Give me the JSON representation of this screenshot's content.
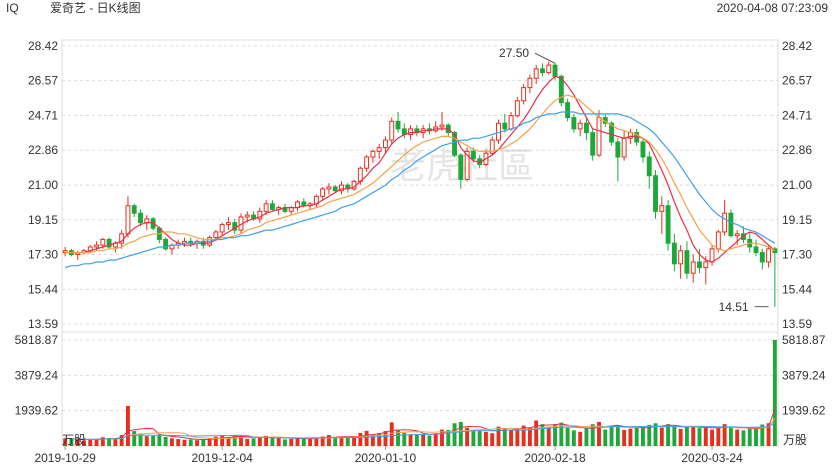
{
  "header": {
    "ticker": "IQ",
    "name": "爱奇艺 - 日K线图",
    "datetime": "2020-04-08 07:23:09"
  },
  "watermark": "老虎社區",
  "colors": {
    "up": "#e5301e",
    "down": "#1fa83a",
    "ma_short": "#e5304a",
    "ma_mid": "#f5a24a",
    "ma_long": "#3fa0e8",
    "grid": "#dcdcdc"
  },
  "chart_data": {
    "type": "candlestick",
    "price_axis": {
      "ticks": [
        28.42,
        26.57,
        24.71,
        22.86,
        21.0,
        19.15,
        17.3,
        15.44,
        13.59
      ],
      "tick_labels": [
        "28.42",
        "26.57",
        "24.71",
        "22.86",
        "21.00",
        "19.15",
        "17.30",
        "15.44",
        "13.59"
      ],
      "range": [
        13.59,
        28.42
      ]
    },
    "volume_axis": {
      "ticks": [
        5818.87,
        3879.24,
        1939.62
      ],
      "tick_labels": [
        "5818.87",
        "3879.24",
        "1939.62"
      ],
      "unit": "万股",
      "max": 5818.87
    },
    "x_labels": [
      "2019-10-29",
      "2019-12-04",
      "2020-01-10",
      "2020-02-18",
      "2020-03-24"
    ],
    "x_label_index": [
      0,
      25,
      51,
      78,
      103
    ],
    "annotations": [
      {
        "text": "27.50",
        "index": 78,
        "value": 27.5
      },
      {
        "text": "14.51",
        "index": 112,
        "value": 14.51
      }
    ],
    "candles": [
      [
        17.4,
        17.7,
        17.2,
        17.5
      ],
      [
        17.5,
        17.6,
        17.2,
        17.3
      ],
      [
        17.3,
        17.5,
        17.0,
        17.4
      ],
      [
        17.4,
        17.6,
        17.3,
        17.5
      ],
      [
        17.5,
        17.8,
        17.4,
        17.7
      ],
      [
        17.7,
        18.0,
        17.5,
        17.8
      ],
      [
        17.8,
        18.2,
        17.6,
        18.1
      ],
      [
        18.1,
        18.2,
        17.6,
        17.7
      ],
      [
        17.7,
        18.0,
        17.4,
        17.9
      ],
      [
        17.9,
        18.6,
        17.6,
        18.4
      ],
      [
        18.4,
        20.4,
        18.2,
        19.9
      ],
      [
        19.9,
        20.0,
        19.3,
        19.5
      ],
      [
        19.5,
        19.7,
        18.8,
        19.0
      ],
      [
        19.0,
        19.4,
        18.6,
        19.2
      ],
      [
        19.2,
        19.3,
        18.6,
        18.7
      ],
      [
        18.7,
        18.8,
        17.9,
        18.1
      ],
      [
        18.1,
        18.2,
        17.5,
        17.6
      ],
      [
        17.6,
        17.9,
        17.3,
        17.8
      ],
      [
        17.8,
        18.1,
        17.6,
        17.9
      ],
      [
        17.9,
        18.2,
        17.7,
        18.0
      ],
      [
        18.0,
        18.2,
        17.7,
        17.9
      ],
      [
        17.9,
        18.1,
        17.6,
        18.0
      ],
      [
        18.0,
        18.2,
        17.6,
        17.8
      ],
      [
        17.8,
        18.3,
        17.7,
        18.2
      ],
      [
        18.2,
        18.6,
        18.0,
        18.5
      ],
      [
        18.5,
        19.0,
        18.3,
        18.9
      ],
      [
        18.9,
        19.3,
        18.6,
        19.0
      ],
      [
        19.0,
        19.2,
        18.4,
        18.6
      ],
      [
        18.6,
        19.5,
        18.4,
        19.3
      ],
      [
        19.3,
        19.6,
        19.0,
        19.4
      ],
      [
        19.4,
        19.6,
        19.1,
        19.2
      ],
      [
        19.2,
        19.8,
        19.0,
        19.6
      ],
      [
        19.6,
        20.2,
        19.4,
        20.0
      ],
      [
        20.0,
        20.2,
        19.6,
        19.7
      ],
      [
        19.7,
        19.9,
        19.4,
        19.8
      ],
      [
        19.8,
        20.0,
        19.5,
        19.6
      ],
      [
        19.6,
        19.9,
        19.4,
        19.8
      ],
      [
        19.8,
        20.2,
        19.6,
        20.1
      ],
      [
        20.1,
        20.3,
        19.8,
        19.9
      ],
      [
        19.9,
        20.1,
        19.7,
        20.0
      ],
      [
        20.0,
        20.5,
        19.8,
        20.4
      ],
      [
        20.4,
        20.9,
        20.2,
        20.8
      ],
      [
        20.8,
        21.1,
        20.5,
        20.9
      ],
      [
        20.9,
        21.0,
        20.6,
        20.7
      ],
      [
        20.7,
        21.2,
        20.5,
        21.0
      ],
      [
        21.0,
        21.1,
        20.6,
        20.8
      ],
      [
        20.8,
        21.3,
        20.7,
        21.2
      ],
      [
        21.2,
        22.0,
        21.0,
        21.9
      ],
      [
        21.9,
        22.6,
        21.7,
        22.5
      ],
      [
        22.5,
        22.9,
        22.2,
        22.8
      ],
      [
        22.8,
        23.2,
        22.4,
        23.0
      ],
      [
        23.0,
        23.6,
        22.7,
        23.4
      ],
      [
        23.4,
        24.6,
        23.2,
        24.4
      ],
      [
        24.4,
        24.9,
        23.8,
        24.0
      ],
      [
        24.0,
        24.3,
        23.5,
        23.7
      ],
      [
        23.7,
        24.2,
        23.4,
        24.0
      ],
      [
        24.0,
        24.2,
        23.6,
        23.8
      ],
      [
        23.8,
        24.2,
        23.5,
        24.0
      ],
      [
        24.0,
        24.3,
        23.7,
        23.9
      ],
      [
        23.9,
        24.4,
        23.8,
        24.1
      ],
      [
        24.1,
        24.9,
        23.9,
        24.2
      ],
      [
        24.2,
        24.3,
        23.6,
        23.8
      ],
      [
        23.8,
        23.9,
        22.5,
        22.6
      ],
      [
        22.6,
        22.7,
        20.8,
        21.3
      ],
      [
        21.3,
        23.0,
        21.2,
        22.8
      ],
      [
        22.8,
        23.0,
        22.2,
        22.4
      ],
      [
        22.4,
        22.6,
        21.9,
        22.1
      ],
      [
        22.1,
        22.9,
        22.0,
        22.7
      ],
      [
        22.7,
        23.6,
        22.6,
        23.4
      ],
      [
        23.4,
        24.5,
        23.2,
        24.3
      ],
      [
        24.3,
        24.8,
        23.8,
        24.0
      ],
      [
        24.0,
        24.9,
        23.9,
        24.7
      ],
      [
        24.7,
        25.7,
        24.6,
        25.5
      ],
      [
        25.5,
        26.4,
        25.3,
        26.2
      ],
      [
        26.2,
        26.9,
        25.9,
        26.7
      ],
      [
        26.7,
        27.4,
        26.4,
        27.2
      ],
      [
        27.2,
        27.5,
        26.8,
        27.0
      ],
      [
        27.0,
        27.6,
        26.9,
        27.4
      ],
      [
        27.4,
        27.5,
        26.6,
        26.8
      ],
      [
        26.8,
        26.9,
        25.2,
        25.4
      ],
      [
        25.4,
        25.6,
        24.4,
        24.6
      ],
      [
        24.6,
        24.8,
        23.8,
        24.0
      ],
      [
        24.0,
        24.5,
        23.6,
        24.3
      ],
      [
        24.3,
        24.6,
        23.4,
        23.8
      ],
      [
        23.8,
        24.0,
        22.3,
        22.6
      ],
      [
        22.6,
        25.0,
        22.5,
        24.6
      ],
      [
        24.6,
        24.8,
        24.1,
        24.3
      ],
      [
        24.3,
        24.4,
        23.1,
        23.3
      ],
      [
        23.3,
        23.5,
        21.2,
        22.5
      ],
      [
        22.5,
        23.9,
        22.3,
        23.5
      ],
      [
        23.5,
        24.0,
        23.2,
        23.8
      ],
      [
        23.8,
        24.0,
        23.1,
        23.3
      ],
      [
        23.3,
        23.5,
        22.2,
        22.5
      ],
      [
        22.5,
        22.8,
        20.8,
        21.5
      ],
      [
        21.5,
        21.8,
        19.2,
        19.6
      ],
      [
        19.6,
        20.4,
        18.4,
        19.9
      ],
      [
        19.9,
        20.2,
        17.5,
        17.9
      ],
      [
        17.9,
        18.4,
        16.4,
        16.8
      ],
      [
        16.8,
        17.8,
        16.0,
        17.5
      ],
      [
        17.5,
        18.0,
        16.0,
        16.3
      ],
      [
        16.3,
        17.3,
        15.8,
        16.9
      ],
      [
        16.9,
        17.6,
        16.3,
        16.6
      ],
      [
        16.6,
        17.2,
        15.7,
        16.9
      ],
      [
        16.9,
        17.8,
        16.7,
        17.6
      ],
      [
        17.6,
        18.6,
        17.4,
        18.5
      ],
      [
        18.5,
        20.2,
        18.3,
        19.5
      ],
      [
        19.5,
        19.7,
        18.2,
        18.3
      ],
      [
        18.3,
        18.6,
        17.8,
        18.4
      ],
      [
        18.4,
        18.8,
        17.9,
        18.1
      ],
      [
        18.1,
        18.5,
        17.4,
        17.7
      ],
      [
        17.7,
        18.1,
        17.2,
        17.4
      ],
      [
        17.4,
        17.6,
        16.5,
        16.9
      ],
      [
        16.9,
        17.8,
        16.6,
        17.6
      ],
      [
        17.6,
        17.7,
        14.51,
        17.4
      ]
    ],
    "volume": [
      420,
      380,
      360,
      300,
      350,
      400,
      480,
      440,
      390,
      600,
      2200,
      820,
      650,
      540,
      560,
      620,
      500,
      420,
      380,
      340,
      360,
      320,
      380,
      420,
      510,
      560,
      460,
      610,
      540,
      380,
      420,
      480,
      560,
      440,
      430,
      360,
      390,
      470,
      400,
      380,
      440,
      520,
      600,
      460,
      520,
      440,
      500,
      720,
      830,
      640,
      700,
      820,
      1300,
      900,
      720,
      640,
      600,
      660,
      580,
      700,
      900,
      880,
      1250,
      1320,
      1000,
      880,
      820,
      780,
      700,
      1060,
      980,
      900,
      980,
      1120,
      1000,
      1400,
      1200,
      1050,
      1200,
      1280,
      1000,
      860,
      780,
      1000,
      1200,
      1320,
      900,
      1100,
      1150,
      880,
      940,
      1000,
      1060,
      1160,
      1250,
      1000,
      1200,
      1080,
      940,
      1100,
      1050,
      980,
      1000,
      900,
      1040,
      1200,
      1000,
      900,
      860,
      980,
      1000,
      1180,
      1250,
      5818.87
    ],
    "ma_short": [
      17.4,
      17.4,
      17.4,
      17.4,
      17.5,
      17.6,
      17.7,
      17.8,
      17.9,
      18.0,
      18.4,
      18.7,
      18.9,
      19.0,
      19.0,
      18.7,
      18.4,
      18.1,
      17.9,
      17.8,
      17.8,
      17.9,
      17.9,
      17.9,
      18.1,
      18.3,
      18.5,
      18.7,
      18.9,
      19.1,
      19.2,
      19.3,
      19.5,
      19.6,
      19.7,
      19.8,
      19.8,
      19.8,
      19.9,
      19.9,
      20.0,
      20.2,
      20.4,
      20.6,
      20.8,
      20.8,
      20.9,
      21.2,
      21.5,
      21.9,
      22.2,
      22.7,
      23.2,
      23.5,
      23.7,
      23.8,
      23.8,
      23.9,
      23.9,
      24.0,
      24.0,
      24.0,
      23.7,
      23.0,
      22.6,
      22.3,
      22.2,
      22.4,
      22.6,
      22.9,
      23.3,
      23.7,
      24.1,
      24.5,
      25.0,
      25.6,
      26.1,
      26.5,
      26.8,
      26.7,
      26.3,
      25.8,
      25.2,
      24.6,
      24.0,
      23.9,
      23.8,
      23.7,
      23.6,
      23.5,
      23.6,
      23.6,
      23.5,
      23.2,
      22.5,
      21.8,
      21.0,
      20.1,
      19.3,
      18.6,
      17.8,
      17.3,
      17.0,
      16.9,
      17.1,
      17.4,
      17.7,
      18.0,
      18.3,
      18.5,
      18.4,
      18.1,
      17.8,
      17.5
    ],
    "ma_mid": [
      17.4,
      17.4,
      17.4,
      17.4,
      17.4,
      17.5,
      17.5,
      17.6,
      17.6,
      17.7,
      17.9,
      18.0,
      18.2,
      18.3,
      18.4,
      18.4,
      18.5,
      18.5,
      18.4,
      18.4,
      18.3,
      18.2,
      18.1,
      18.1,
      18.1,
      18.2,
      18.2,
      18.3,
      18.4,
      18.6,
      18.7,
      18.8,
      19.0,
      19.1,
      19.2,
      19.3,
      19.4,
      19.5,
      19.6,
      19.7,
      19.8,
      19.9,
      20.1,
      20.2,
      20.3,
      20.4,
      20.5,
      20.7,
      20.9,
      21.1,
      21.4,
      21.7,
      22.0,
      22.3,
      22.6,
      22.9,
      23.1,
      23.3,
      23.4,
      23.5,
      23.6,
      23.6,
      23.5,
      23.3,
      23.1,
      22.9,
      22.8,
      22.8,
      22.8,
      22.9,
      23.0,
      23.2,
      23.4,
      23.7,
      24.0,
      24.4,
      24.8,
      25.2,
      25.5,
      25.7,
      25.8,
      25.7,
      25.5,
      25.2,
      24.9,
      24.6,
      24.4,
      24.2,
      24.0,
      23.9,
      23.8,
      23.7,
      23.5,
      23.3,
      22.9,
      22.4,
      21.8,
      21.1,
      20.5,
      19.8,
      19.2,
      18.6,
      18.2,
      17.8,
      17.6,
      17.5,
      17.6,
      17.7,
      17.8,
      17.9,
      17.9,
      17.8,
      17.7,
      17.5
    ],
    "ma_long": [
      16.6,
      16.7,
      16.7,
      16.8,
      16.8,
      16.9,
      16.9,
      17.0,
      17.0,
      17.1,
      17.2,
      17.3,
      17.4,
      17.5,
      17.6,
      17.7,
      17.7,
      17.8,
      17.8,
      17.9,
      17.9,
      17.9,
      18.0,
      18.0,
      18.1,
      18.1,
      18.2,
      18.2,
      18.3,
      18.3,
      18.4,
      18.5,
      18.6,
      18.6,
      18.7,
      18.8,
      18.9,
      19.0,
      19.1,
      19.2,
      19.3,
      19.4,
      19.5,
      19.6,
      19.8,
      19.9,
      20.0,
      20.2,
      20.4,
      20.6,
      20.8,
      21.0,
      21.3,
      21.5,
      21.8,
      22.0,
      22.3,
      22.5,
      22.7,
      22.9,
      23.1,
      23.2,
      23.3,
      23.4,
      23.4,
      23.5,
      23.5,
      23.6,
      23.7,
      23.8,
      23.9,
      24.0,
      24.1,
      24.3,
      24.4,
      24.6,
      24.7,
      24.8,
      24.8,
      24.9,
      24.9,
      24.9,
      24.8,
      24.8,
      24.8,
      24.8,
      24.8,
      24.8,
      24.8,
      24.7,
      24.6,
      24.4,
      24.2,
      24.0,
      23.7,
      23.3,
      22.9,
      22.5,
      22.0,
      21.5,
      21.0,
      20.5,
      20.1,
      19.7,
      19.4,
      19.2,
      19.0,
      18.9,
      18.7,
      18.6,
      18.5,
      18.3,
      18.1,
      17.9
    ]
  }
}
